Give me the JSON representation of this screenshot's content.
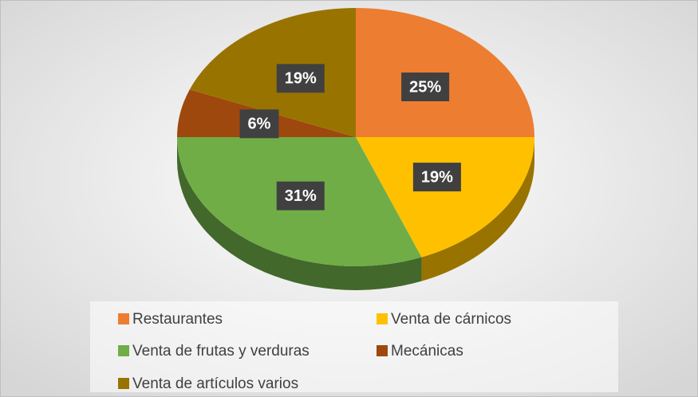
{
  "chart_data": {
    "type": "pie",
    "categories": [
      "Restaurantes",
      "Venta de cárnicos",
      "Venta de frutas y verduras",
      "Mecánicas",
      "Venta de artículos varios"
    ],
    "values": [
      25,
      19,
      31,
      6,
      19
    ],
    "value_labels": [
      "25%",
      "19%",
      "31%",
      "6%",
      "19%"
    ],
    "colors": [
      "#ed7d31",
      "#ffc000",
      "#70ad47",
      "#9e480e",
      "#997300"
    ]
  }
}
